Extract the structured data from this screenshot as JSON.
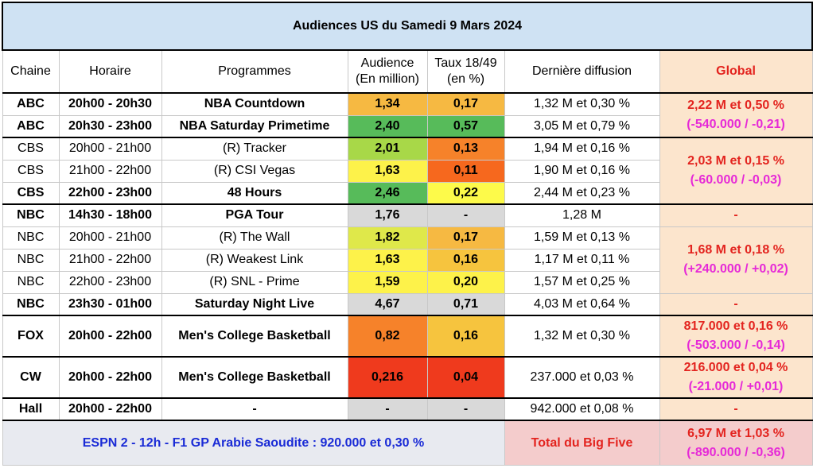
{
  "title": "Audiences US du Samedi 9 Mars 2024",
  "headers": {
    "chaine": "Chaine",
    "horaire": "Horaire",
    "programmes": "Programmes",
    "audience_l1": "Audience",
    "audience_l2": "(En million)",
    "taux_l1": "Taux 18/49",
    "taux_l2": "(en %)",
    "derniere": "Dernière diffusion",
    "global": "Global"
  },
  "rows": [
    {
      "chaine": "ABC",
      "horaire": "20h00 - 20h30",
      "programme": "NBA Countdown",
      "audience": "1,34",
      "taux": "0,17",
      "derniere": "1,32 M et 0,30 %",
      "aud_color": "#f6b942",
      "taux_color": "#f6b942"
    },
    {
      "chaine": "ABC",
      "horaire": "20h30 - 23h00",
      "programme": "NBA Saturday Primetime",
      "audience": "2,40",
      "taux": "0,57",
      "derniere": "3,05 M et 0,79 %",
      "aud_color": "#57bb5a",
      "taux_color": "#57bb5a"
    },
    {
      "chaine": "CBS",
      "horaire": "20h00 - 21h00",
      "programme": "(R) Tracker",
      "audience": "2,01",
      "taux": "0,13",
      "derniere": "1,94 M et 0,16 %",
      "aud_color": "#a8d848",
      "taux_color": "#f6822a"
    },
    {
      "chaine": "CBS",
      "horaire": "21h00 - 22h00",
      "programme": "(R) CSI Vegas",
      "audience": "1,63",
      "taux": "0,11",
      "derniere": "1,90 M et 0,16 %",
      "aud_color": "#fdf24a",
      "taux_color": "#f6681e"
    },
    {
      "chaine": "CBS",
      "horaire": "22h00 - 23h00",
      "programme": "48 Hours",
      "audience": "2,46",
      "taux": "0,22",
      "derniere": "2,44 M et 0,23 %",
      "aud_color": "#57bb5a",
      "taux_color": "#fdfa4a"
    },
    {
      "chaine": "NBC",
      "horaire": "14h30 - 18h00",
      "programme": "PGA Tour",
      "audience": "1,76",
      "taux": "-",
      "derniere": "1,28 M",
      "aud_color": "#d9d9d9",
      "taux_color": "#d9d9d9"
    },
    {
      "chaine": "NBC",
      "horaire": "20h00 - 21h00",
      "programme": "(R) The Wall",
      "audience": "1,82",
      "taux": "0,17",
      "derniere": "1,59 M et 0,13 %",
      "aud_color": "#dfe84a",
      "taux_color": "#f6b942"
    },
    {
      "chaine": "NBC",
      "horaire": "21h00 - 22h00",
      "programme": "(R) Weakest Link",
      "audience": "1,63",
      "taux": "0,16",
      "derniere": "1,17 M et 0,11 %",
      "aud_color": "#fdf24a",
      "taux_color": "#f6c43e"
    },
    {
      "chaine": "NBC",
      "horaire": "22h00 - 23h00",
      "programme": "(R) SNL - Prime",
      "audience": "1,59",
      "taux": "0,20",
      "derniere": "1,57 M et 0,25 %",
      "aud_color": "#fdf24a",
      "taux_color": "#fdf24a"
    },
    {
      "chaine": "NBC",
      "horaire": "23h30 - 01h00",
      "programme": "Saturday Night Live",
      "audience": "4,67",
      "taux": "0,71",
      "derniere": "4,03 M et 0,64 %",
      "aud_color": "#d9d9d9",
      "taux_color": "#d9d9d9"
    },
    {
      "chaine": "FOX",
      "horaire": "20h00 - 22h00",
      "programme": "Men's College Basketball",
      "audience": "0,82",
      "taux": "0,16",
      "derniere": "1,32 M et 0,30 %",
      "aud_color": "#f6822a",
      "taux_color": "#f6c43e"
    },
    {
      "chaine": "CW",
      "horaire": "20h00 - 22h00",
      "programme": "Men's College Basketball",
      "audience": "0,216",
      "taux": "0,04",
      "derniere": "237.000 et 0,03 %",
      "aud_color": "#ef3a1d",
      "taux_color": "#ef3a1d"
    },
    {
      "chaine": "Hall",
      "horaire": "20h00 - 22h00",
      "programme": "-",
      "audience": "-",
      "taux": "-",
      "derniere": "942.000 et 0,08 %",
      "aud_color": "#d9d9d9",
      "taux_color": "#d9d9d9"
    }
  ],
  "globals": {
    "abc": {
      "main": "2,22 M et 0,50 %",
      "delta": "(-540.000 / -0,21)"
    },
    "cbs": {
      "main": "2,03 M et 0,15 %",
      "delta": "(-60.000 / -0,03)"
    },
    "nbc_pga": {
      "main": "-"
    },
    "nbc_prime": {
      "main": "1,68 M et 0,18 %",
      "delta": "(+240.000 / +0,02)"
    },
    "nbc_snl": {
      "main": "-"
    },
    "fox": {
      "main": "817.000 et 0,16 %",
      "delta": "(-503.000 / -0,14)"
    },
    "cw": {
      "main": "216.000 et 0,04 %",
      "delta": "(-21.000 / +0,01)"
    },
    "hall": {
      "main": "-"
    }
  },
  "footer": {
    "espn": "ESPN 2 - 12h - F1 GP Arabie Saoudite : 920.000 et 0,30 %",
    "bigfive_label": "Total du Big Five",
    "bigfive_main": "6,97 M et 1,03 %",
    "bigfive_delta": "(-890.000 / -0,36)"
  },
  "colors": {
    "title_bg": "#cfe2f3",
    "global_bg": "#fce5cd",
    "global_text": "#e3241f",
    "delta_text": "#e62ad7",
    "espn_text": "#1a2bd6",
    "bigfive_bg": "#f4cccc",
    "grey": "#d9d9d9"
  }
}
